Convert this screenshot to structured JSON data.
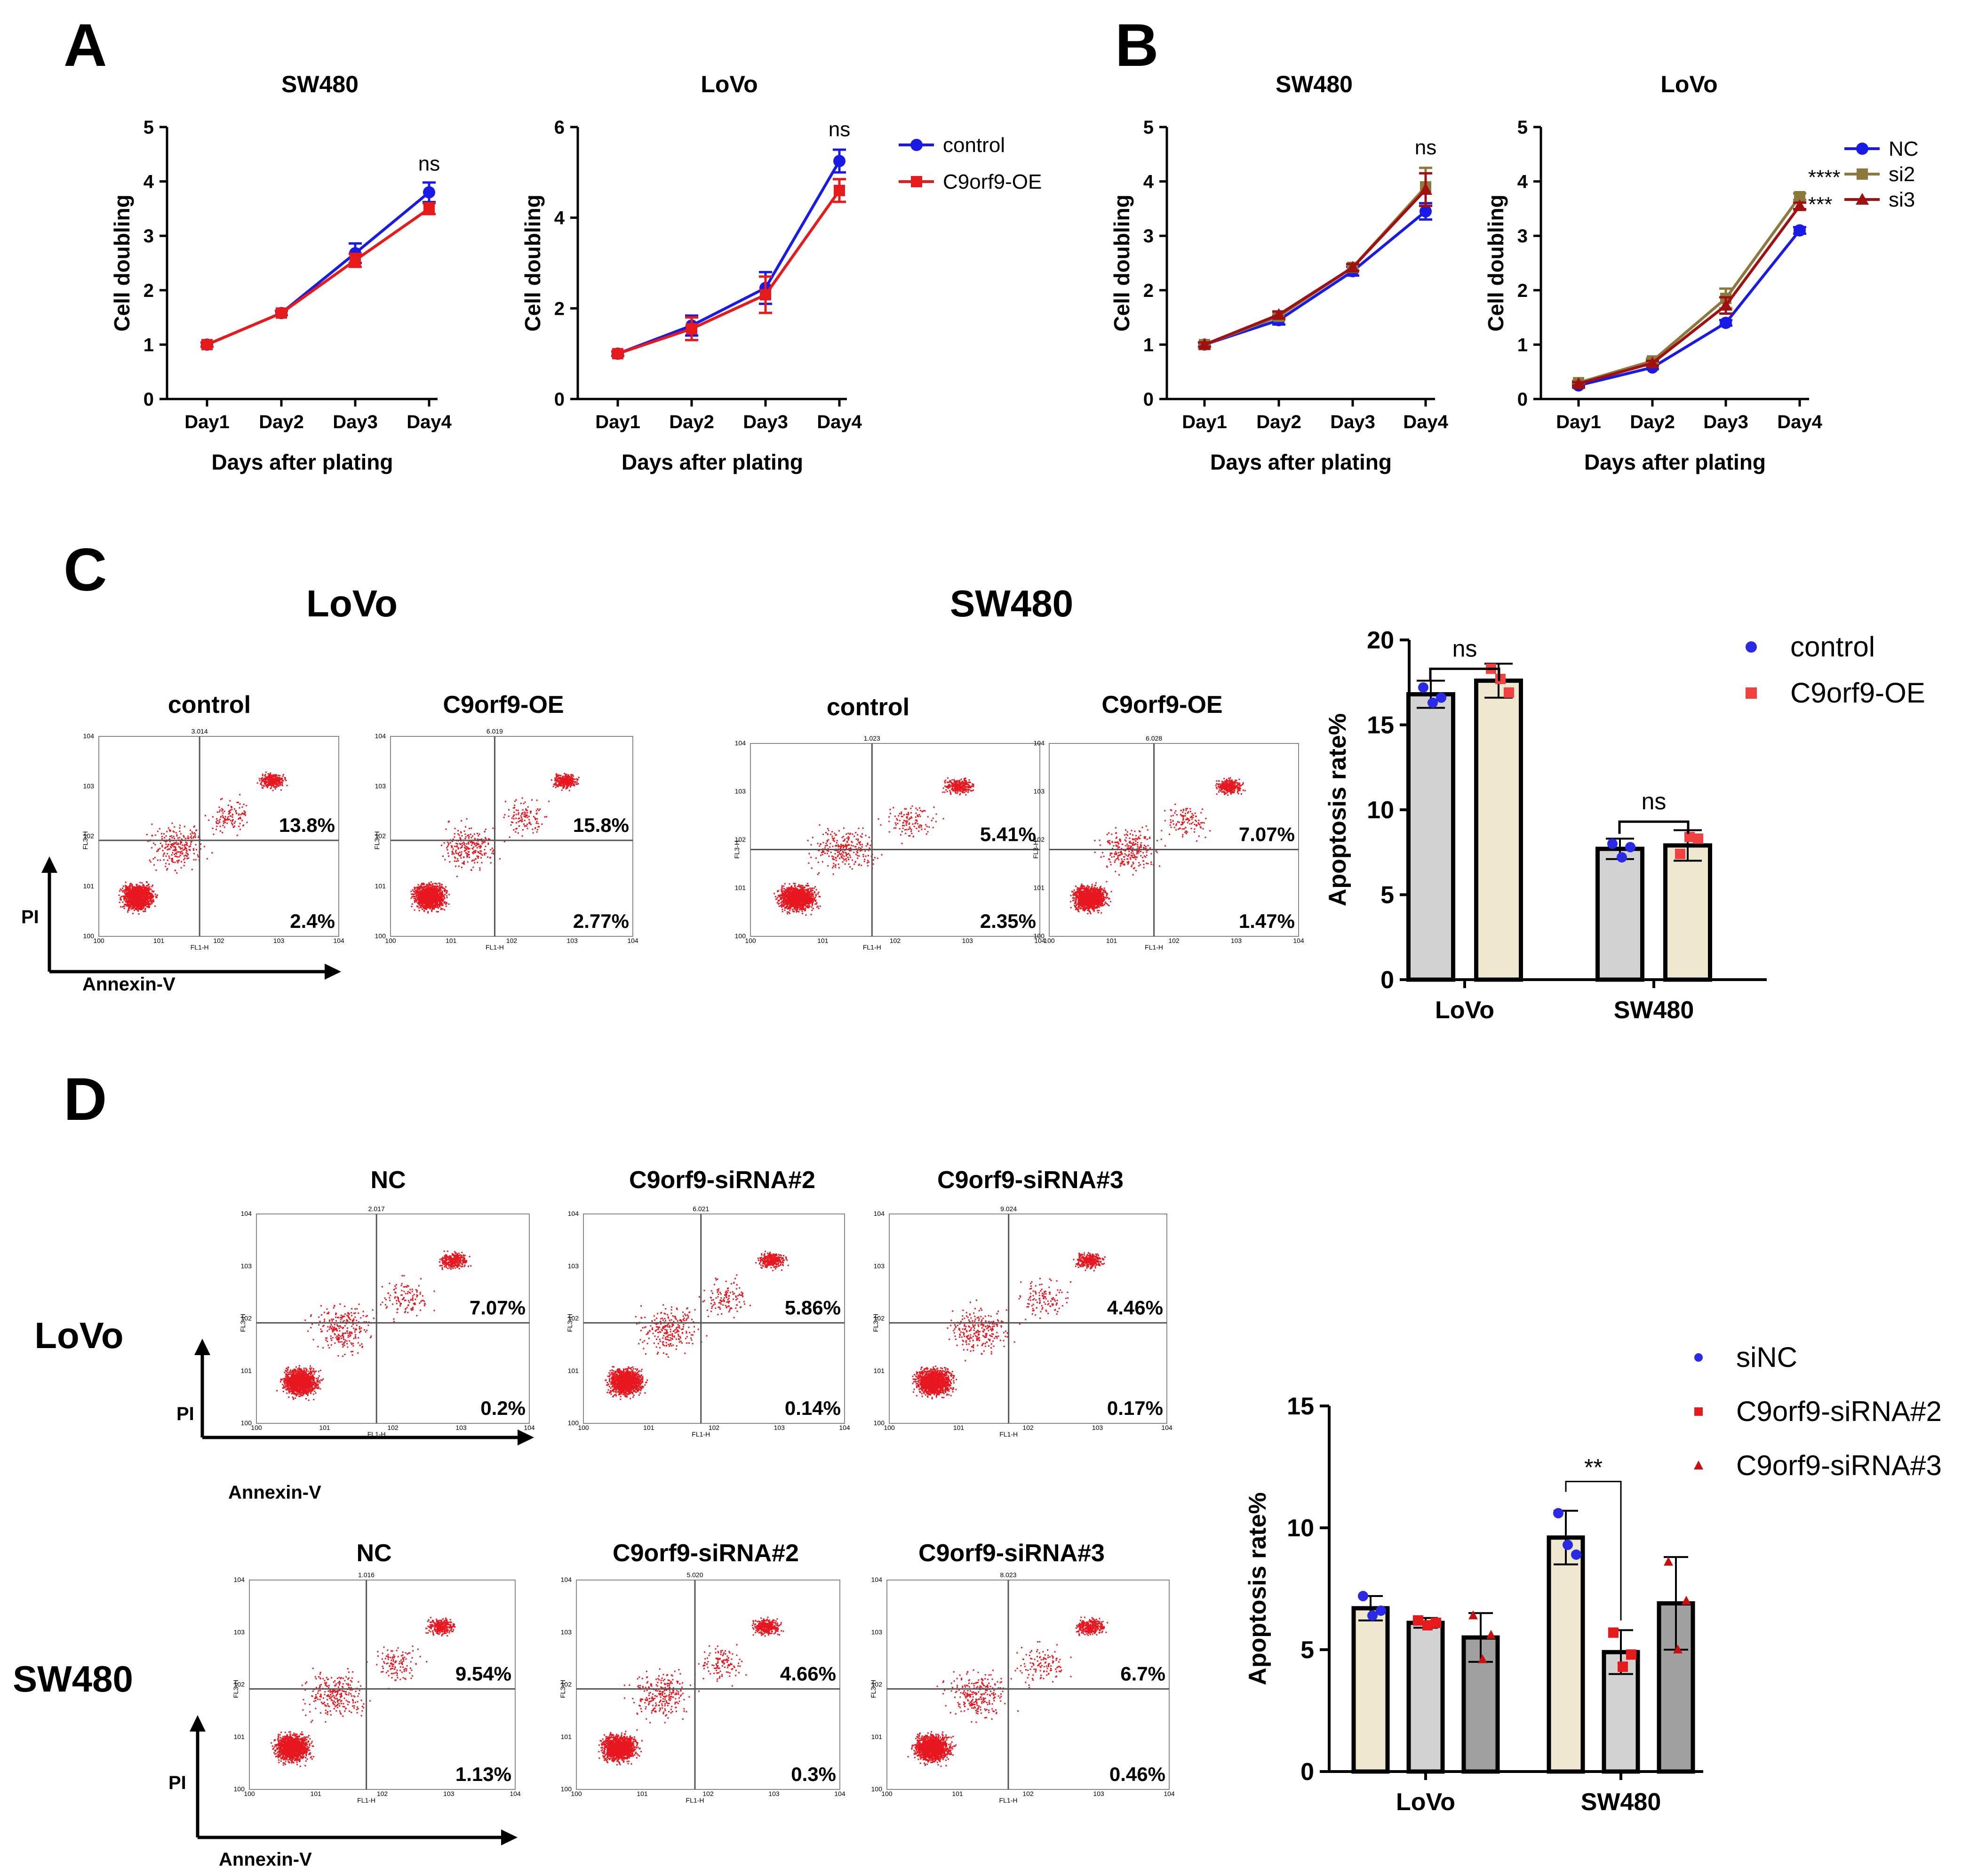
{
  "figure": {
    "panel_letters": [
      "A",
      "B",
      "C",
      "D"
    ],
    "common": {
      "xlabel": "Days after plating",
      "ylabel": "Cell doubling",
      "days": [
        "Day1",
        "Day2",
        "Day3",
        "Day4"
      ],
      "apoptosis_ylabel": "Apoptosis rate%",
      "pi_label": "PI",
      "annexin_label": "Annexin-V",
      "flow_x_channel": "FL1-H",
      "flow_y_channel": "FL3-H"
    },
    "panel_c": {
      "lovo_title": "LoVo",
      "sw480_title": "SW480",
      "sample_titles": [
        "control",
        "C9orf9-OE"
      ]
    },
    "panel_d": {
      "row_labels": [
        "LoVo",
        "SW480"
      ],
      "sample_titles": [
        "NC",
        "C9orf9-siRNA#2",
        "C9orf9-siRNA#3"
      ]
    }
  },
  "colors": {
    "blue": "#1a1ae6",
    "red": "#e61a1a",
    "olive": "#8c7a3c",
    "darkred": "#a01010",
    "dots": "#e8161e",
    "bar_gray": "#d3d3d3",
    "bar_cream": "#efe8cf",
    "bar_dark": "#a0a0a0"
  },
  "chart_data": [
    {
      "id": "A1",
      "type": "line",
      "title": "SW480",
      "xlabel": "Days after plating",
      "ylabel": "Cell doubling",
      "categories": [
        "Day1",
        "Day2",
        "Day3",
        "Day4"
      ],
      "ylim": [
        0,
        5
      ],
      "yticks": [
        0,
        1,
        2,
        3,
        4,
        5
      ],
      "series": [
        {
          "name": "control",
          "color": "#1a1ae6",
          "marker": "circle",
          "values": [
            1.0,
            1.58,
            2.68,
            3.8
          ],
          "err": [
            0.04,
            0.04,
            0.18,
            0.18
          ]
        },
        {
          "name": "C9orf9-OE",
          "color": "#e61a1a",
          "marker": "square",
          "values": [
            1.0,
            1.58,
            2.55,
            3.5
          ],
          "err": [
            0.04,
            0.04,
            0.12,
            0.1
          ]
        }
      ],
      "annotations": [
        {
          "text": "ns",
          "category": "Day4",
          "y": 4.2
        }
      ],
      "legend": [
        "control",
        "C9orf9-OE"
      ]
    },
    {
      "id": "A2",
      "type": "line",
      "title": "LoVo",
      "xlabel": "Days after plating",
      "ylabel": "Cell doubling",
      "categories": [
        "Day1",
        "Day2",
        "Day3",
        "Day4"
      ],
      "ylim": [
        0,
        6
      ],
      "yticks": [
        0,
        2,
        4,
        6
      ],
      "series": [
        {
          "name": "control",
          "color": "#1a1ae6",
          "marker": "circle",
          "values": [
            1.0,
            1.62,
            2.45,
            5.25
          ],
          "err": [
            0.05,
            0.22,
            0.35,
            0.25
          ]
        },
        {
          "name": "C9orf9-OE",
          "color": "#e61a1a",
          "marker": "square",
          "values": [
            1.0,
            1.55,
            2.3,
            4.6
          ],
          "err": [
            0.05,
            0.25,
            0.4,
            0.25
          ]
        }
      ],
      "annotations": [
        {
          "text": "ns",
          "category": "Day4",
          "y": 5.8
        }
      ],
      "legend": [
        "control",
        "C9orf9-OE"
      ]
    },
    {
      "id": "B1",
      "type": "line",
      "title": "SW480",
      "xlabel": "Days after plating",
      "ylabel": "Cell doubling",
      "categories": [
        "Day1",
        "Day2",
        "Day3",
        "Day4"
      ],
      "ylim": [
        0,
        5
      ],
      "yticks": [
        0,
        1,
        2,
        3,
        4,
        5
      ],
      "series": [
        {
          "name": "NC",
          "color": "#1a1ae6",
          "marker": "circle",
          "values": [
            1.0,
            1.45,
            2.35,
            3.45
          ],
          "err": [
            0.04,
            0.08,
            0.08,
            0.15
          ]
        },
        {
          "name": "si2",
          "color": "#8c7a3c",
          "marker": "square",
          "values": [
            1.0,
            1.52,
            2.42,
            3.9
          ],
          "err": [
            0.04,
            0.06,
            0.06,
            0.35
          ]
        },
        {
          "name": "si3",
          "color": "#a01010",
          "marker": "triangle",
          "values": [
            1.0,
            1.55,
            2.42,
            3.85
          ],
          "err": [
            0.04,
            0.06,
            0.06,
            0.3
          ]
        }
      ],
      "annotations": [
        {
          "text": "ns",
          "category": "Day4",
          "y": 4.5
        }
      ],
      "legend": [
        "NC",
        "si2",
        "si3"
      ]
    },
    {
      "id": "B2",
      "type": "line",
      "title": "LoVo",
      "xlabel": "Days after plating",
      "ylabel": "Cell doubling",
      "categories": [
        "Day1",
        "Day2",
        "Day3",
        "Day4"
      ],
      "ylim": [
        0,
        5
      ],
      "yticks": [
        0,
        1,
        2,
        3,
        4,
        5
      ],
      "series": [
        {
          "name": "NC",
          "color": "#1a1ae6",
          "marker": "circle",
          "values": [
            0.25,
            0.58,
            1.4,
            3.1
          ],
          "err": [
            0.03,
            0.03,
            0.05,
            0.06
          ]
        },
        {
          "name": "si2",
          "color": "#8c7a3c",
          "marker": "square",
          "values": [
            0.3,
            0.7,
            1.85,
            3.72
          ],
          "err": [
            0.03,
            0.04,
            0.18,
            0.06
          ]
        },
        {
          "name": "si3",
          "color": "#a01010",
          "marker": "triangle",
          "values": [
            0.28,
            0.66,
            1.72,
            3.55
          ],
          "err": [
            0.03,
            0.04,
            0.15,
            0.06
          ]
        }
      ],
      "annotations": [
        {
          "text": "****",
          "category": "Day4",
          "y": 3.95
        },
        {
          "text": "***",
          "category": "Day4",
          "y": 3.45
        }
      ],
      "legend": [
        "NC",
        "si2",
        "si3"
      ]
    },
    {
      "id": "C-bar",
      "type": "bar",
      "ylabel": "Apoptosis rate%",
      "categories": [
        "LoVo",
        "SW480"
      ],
      "ylim": [
        0,
        20
      ],
      "yticks": [
        0,
        5,
        10,
        15,
        20
      ],
      "series": [
        {
          "name": "control",
          "color": "#d3d3d3",
          "dot": "#2a2ae6",
          "values": [
            16.8,
            7.7
          ],
          "err": [
            0.8,
            0.6
          ],
          "points": [
            [
              17.2,
              16.3,
              16.6
            ],
            [
              8.0,
              7.2,
              7.8
            ]
          ]
        },
        {
          "name": "C9orf9-OE",
          "color": "#efe8cf",
          "dot": "#f04040",
          "values": [
            17.6,
            7.9
          ],
          "err": [
            1.0,
            0.9
          ],
          "points": [
            [
              18.3,
              17.7,
              16.9
            ],
            [
              7.4,
              8.4,
              8.3
            ]
          ]
        }
      ],
      "annotations": [
        {
          "text": "ns",
          "category": "LoVo",
          "y": 19.3
        },
        {
          "text": "ns",
          "category": "SW480",
          "y": 10.3
        }
      ],
      "legend": [
        "control",
        "C9orf9-OE"
      ]
    },
    {
      "id": "D-bar",
      "type": "bar",
      "ylabel": "Apoptosis rate%",
      "categories": [
        "LoVo",
        "SW480"
      ],
      "ylim": [
        0,
        15
      ],
      "yticks": [
        0,
        5,
        10,
        15
      ],
      "series": [
        {
          "name": "siNC",
          "color": "#efe8cf",
          "dot": "#2a2ae6",
          "values": [
            6.7,
            9.6
          ],
          "err": [
            0.5,
            1.1
          ],
          "points": [
            [
              7.2,
              6.4,
              6.6
            ],
            [
              10.6,
              9.3,
              8.9
            ]
          ]
        },
        {
          "name": "C9orf9-siRNA#2",
          "color": "#d3d3d3",
          "dot": "#e61a1a",
          "values": [
            6.1,
            4.9
          ],
          "err": [
            0.2,
            0.9
          ],
          "points": [
            [
              6.2,
              6.0,
              6.1
            ],
            [
              5.7,
              4.3,
              4.8
            ]
          ]
        },
        {
          "name": "C9orf9-siRNA#3",
          "color": "#a0a0a0",
          "dot": "#c81010",
          "values": [
            5.5,
            6.9
          ],
          "err": [
            1.0,
            1.9
          ],
          "points": [
            [
              6.4,
              4.6,
              5.6
            ],
            [
              8.6,
              5.0,
              7.0
            ]
          ]
        }
      ],
      "annotations": [
        {
          "text": "**",
          "y": 12.5
        }
      ],
      "legend": [
        "siNC",
        "C9orf9-siRNA#2",
        "C9orf9-siRNA#3"
      ]
    }
  ],
  "flow_plots": [
    {
      "id": "C-LoVo-control",
      "title": "control",
      "ur": "13.8%",
      "lr": "2.4%",
      "file": "3.014"
    },
    {
      "id": "C-LoVo-OE",
      "title": "C9orf9-OE",
      "ur": "15.8%",
      "lr": "2.77%",
      "file": "6.019"
    },
    {
      "id": "C-SW480-control",
      "title": "control",
      "ur": "5.41%",
      "lr": "2.35%",
      "file": "1.023"
    },
    {
      "id": "C-SW480-OE",
      "title": "C9orf9-OE",
      "ur": "7.07%",
      "lr": "1.47%",
      "file": "6.028"
    },
    {
      "id": "D-LoVo-NC",
      "title": "NC",
      "ur": "7.07%",
      "lr": "0.2%",
      "file": "2.017"
    },
    {
      "id": "D-LoVo-si2",
      "title": "C9orf9-siRNA#2",
      "ur": "5.86%",
      "lr": "0.14%",
      "file": "6.021"
    },
    {
      "id": "D-LoVo-si3",
      "title": "C9orf9-siRNA#3",
      "ur": "4.46%",
      "lr": "0.17%",
      "file": "9.024"
    },
    {
      "id": "D-SW480-NC",
      "title": "NC",
      "ur": "9.54%",
      "lr": "1.13%",
      "file": "1.016"
    },
    {
      "id": "D-SW480-si2",
      "title": "C9orf9-siRNA#2",
      "ur": "4.66%",
      "lr": "0.3%",
      "file": "5.020"
    },
    {
      "id": "D-SW480-si3",
      "title": "C9orf9-siRNA#3",
      "ur": "6.7%",
      "lr": "0.46%",
      "file": "8.023"
    }
  ]
}
